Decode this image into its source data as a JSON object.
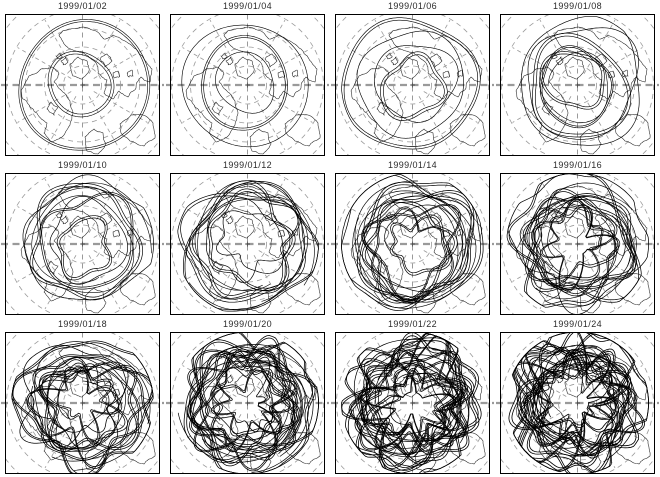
{
  "figure": {
    "type": "map-panel-grid",
    "grid": {
      "rows": 3,
      "cols": 4
    },
    "colors": {
      "background": "#ffffff",
      "panel_border": "#000000",
      "graticule": "#9a9a9a",
      "coastline": "#1c1c1c",
      "contour": "#000000",
      "label_text": "#2b2b2b"
    },
    "panels": [
      {
        "date": "1999/01/02",
        "complexity": 1
      },
      {
        "date": "1999/01/04",
        "complexity": 2
      },
      {
        "date": "1999/01/06",
        "complexity": 3
      },
      {
        "date": "1999/01/08",
        "complexity": 4
      },
      {
        "date": "1999/01/10",
        "complexity": 5
      },
      {
        "date": "1999/01/12",
        "complexity": 6
      },
      {
        "date": "1999/01/14",
        "complexity": 7
      },
      {
        "date": "1999/01/16",
        "complexity": 8
      },
      {
        "date": "1999/01/18",
        "complexity": 9
      },
      {
        "date": "1999/01/20",
        "complexity": 10
      },
      {
        "date": "1999/01/22",
        "complexity": 11
      },
      {
        "date": "1999/01/24",
        "complexity": 12
      }
    ]
  }
}
